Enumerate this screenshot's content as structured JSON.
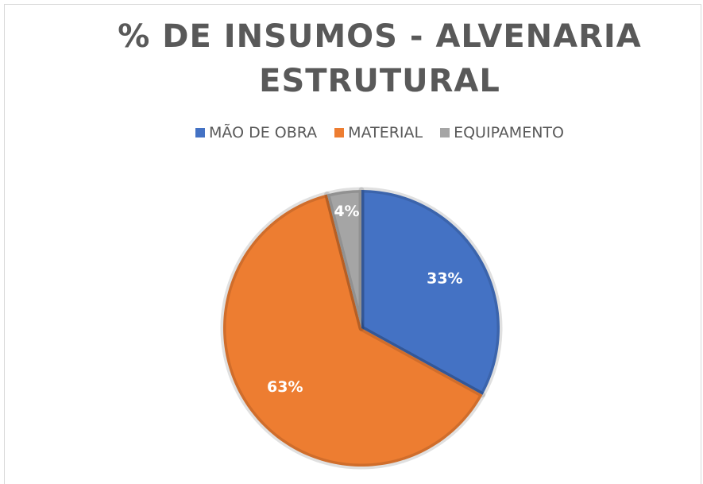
{
  "chart_data": {
    "type": "pie",
    "title": "% DE INSUMOS - ALVENARIA ESTRUTURAL",
    "categories": [
      "MÃO DE OBRA",
      "MATERIAL",
      "EQUIPAMENTO"
    ],
    "values": [
      33,
      63,
      4
    ],
    "value_labels": [
      "33%",
      "63%",
      "4%"
    ],
    "colors": [
      "#4472c4",
      "#ed7d31",
      "#a5a5a5"
    ],
    "legend": "top"
  }
}
